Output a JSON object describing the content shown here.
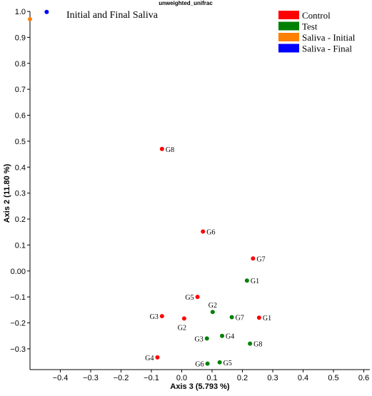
{
  "chart_data": {
    "type": "scatter",
    "title": "unweighted_unifrac",
    "annotation": "Initial and Final Saliva",
    "xlabel": "Axis 3 (5.793 %)",
    "ylabel": "Axis 2 (11.80 %)",
    "xlim": [
      -0.5,
      0.62
    ],
    "ylim": [
      -0.38,
      1.0
    ],
    "xticks": [
      -0.4,
      -0.3,
      -0.2,
      -0.1,
      0.0,
      0.1,
      0.2,
      0.3,
      0.4,
      0.5,
      0.6
    ],
    "xtick_labels": [
      "−0.4",
      "−0.3",
      "−0.2",
      "−0.1",
      "0.0",
      "0.1",
      "0.2",
      "0.3",
      "0.4",
      "0.5",
      "0.6"
    ],
    "yticks": [
      -0.3,
      -0.2,
      -0.1,
      0.0,
      0.1,
      0.2,
      0.3,
      0.4,
      0.5,
      0.6,
      0.7,
      0.8,
      0.9,
      1.0
    ],
    "ytick_labels": [
      "−0.3",
      "−0.2",
      "−0.1",
      "0.00",
      "0.1",
      "0.2",
      "0.3",
      "0.4",
      "0.5",
      "0.6",
      "0.7",
      "0.8",
      "0.9",
      "1.0"
    ],
    "grid": false,
    "legend_position": "top-right",
    "series": [
      {
        "name": "Control",
        "color": "#ff0000",
        "points": [
          {
            "x": -0.065,
            "y": 0.47,
            "label": "G8",
            "label_pos": "right"
          },
          {
            "x": 0.07,
            "y": 0.152,
            "label": "G6",
            "label_pos": "right"
          },
          {
            "x": 0.235,
            "y": 0.048,
            "label": "G7",
            "label_pos": "right"
          },
          {
            "x": 0.052,
            "y": -0.1,
            "label": "G5",
            "label_pos": "left"
          },
          {
            "x": -0.065,
            "y": -0.174,
            "label": "G3",
            "label_pos": "left"
          },
          {
            "x": 0.008,
            "y": -0.183,
            "label": "G2",
            "label_pos": "below"
          },
          {
            "x": 0.255,
            "y": -0.18,
            "label": "G1",
            "label_pos": "right"
          },
          {
            "x": -0.08,
            "y": -0.333,
            "label": "G4",
            "label_pos": "left"
          }
        ]
      },
      {
        "name": "Test",
        "color": "#008000",
        "points": [
          {
            "x": 0.215,
            "y": -0.037,
            "label": "G1",
            "label_pos": "right"
          },
          {
            "x": 0.102,
            "y": -0.158,
            "label": "G2",
            "label_pos": "above"
          },
          {
            "x": 0.165,
            "y": -0.178,
            "label": "G7",
            "label_pos": "right"
          },
          {
            "x": 0.133,
            "y": -0.25,
            "label": "G4",
            "label_pos": "right"
          },
          {
            "x": 0.083,
            "y": -0.26,
            "label": "G3",
            "label_pos": "left"
          },
          {
            "x": 0.225,
            "y": -0.28,
            "label": "G8",
            "label_pos": "right"
          },
          {
            "x": 0.125,
            "y": -0.352,
            "label": "G5",
            "label_pos": "right"
          },
          {
            "x": 0.085,
            "y": -0.357,
            "label": "G6",
            "label_pos": "left"
          }
        ]
      },
      {
        "name": "Saliva - Initial",
        "color": "#ff8000",
        "points": [
          {
            "x": -0.5,
            "y": 0.97,
            "label": "",
            "label_pos": "right"
          }
        ]
      },
      {
        "name": "Saliva - Final",
        "color": "#0000ff",
        "points": [
          {
            "x": -0.445,
            "y": 0.998,
            "label": "",
            "label_pos": "right"
          }
        ]
      }
    ]
  }
}
